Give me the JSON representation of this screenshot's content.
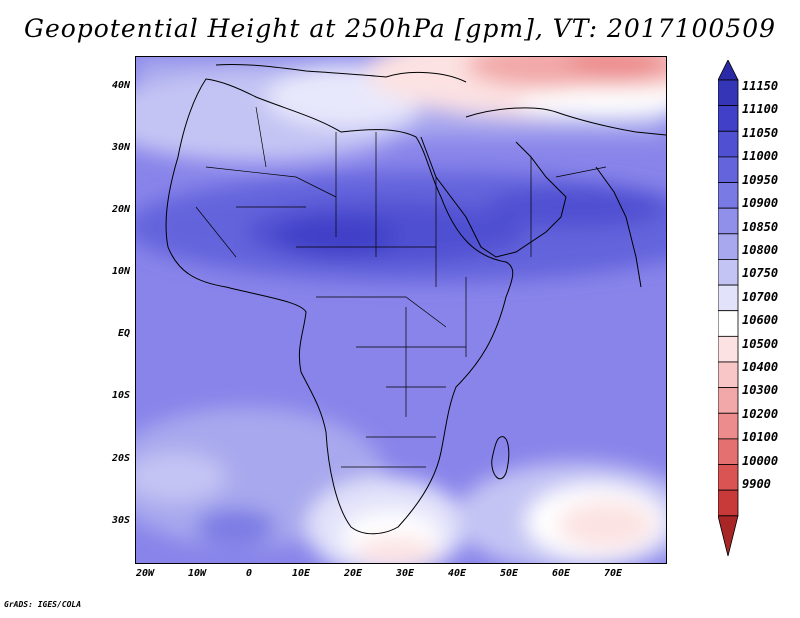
{
  "title": "Geopotential Height at 250hPa [gpm], VT: 2017100509",
  "credit": "GrADS: IGES/COLA",
  "lat_ticks": [
    "40N",
    "30N",
    "20N",
    "10N",
    "EQ",
    "10S",
    "20S",
    "30S"
  ],
  "lon_ticks": [
    "20W",
    "10W",
    "0",
    "10E",
    "20E",
    "30E",
    "40E",
    "50E",
    "60E",
    "70E"
  ],
  "colorbar": {
    "levels": [
      "11150",
      "11100",
      "11050",
      "11000",
      "10950",
      "10900",
      "10850",
      "10800",
      "10750",
      "10700",
      "10600",
      "10500",
      "10400",
      "10300",
      "10200",
      "10100",
      "10000",
      "9900"
    ],
    "colors": [
      "#2a2aa6",
      "#3535b8",
      "#4040c8",
      "#5050d2",
      "#6464dc",
      "#7a7ae4",
      "#9090ea",
      "#a8a8ee",
      "#c4c4f4",
      "#e2e2fa",
      "#ffffff",
      "#fce2e2",
      "#f8c6c6",
      "#f2a8a8",
      "#ec8c8c",
      "#e47070",
      "#da5454",
      "#c83a3a",
      "#a82626"
    ]
  }
}
